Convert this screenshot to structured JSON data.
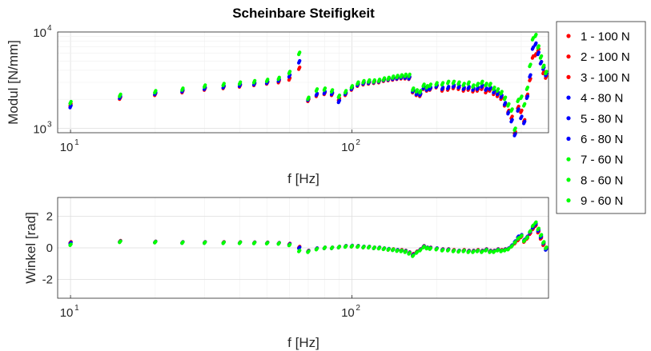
{
  "colors": {
    "force_100N": "#ff0000",
    "force_80N": "#0000ff",
    "force_60N": "#00ff00",
    "grid": "#dedede",
    "axes": "#262626"
  },
  "legend": {
    "placement": "outside-right",
    "entries": [
      "1 - 100 N",
      "2 - 100 N",
      "3 - 100 N",
      "4 - 80 N",
      "5 - 80 N",
      "6 - 80 N",
      "7 - 60 N",
      "8 - 60 N",
      "9 - 60 N"
    ]
  },
  "chart_data": [
    {
      "type": "scatter",
      "title": "Scheinbare Steifigkeit",
      "xlabel": "f [Hz]",
      "ylabel": "Modul [N/mm]",
      "xscale": "log",
      "yscale": "log",
      "xlim": [
        9,
        500
      ],
      "ylim": [
        900,
        10000
      ],
      "grid": true,
      "xticks": [
        {
          "base": "10",
          "exp": "1"
        },
        {
          "base": "10",
          "exp": "2"
        }
      ],
      "yticks": [
        {
          "base": "10",
          "exp": "3"
        },
        {
          "base": "10",
          "exp": "4"
        }
      ],
      "groups": [
        {
          "name": "100 N",
          "color": "#ff0000",
          "series": [
            "1 - 100 N",
            "2 - 100 N",
            "3 - 100 N"
          ]
        },
        {
          "name": "80 N",
          "color": "#0000ff",
          "series": [
            "4 - 80 N",
            "5 - 80 N",
            "6 - 80 N"
          ]
        },
        {
          "name": "60 N",
          "color": "#00ff00",
          "series": [
            "7 - 60 N",
            "8 - 60 N",
            "9 - 60 N"
          ]
        }
      ],
      "x": [
        10,
        15,
        20,
        25,
        30,
        35,
        40,
        45,
        50,
        55,
        60,
        65,
        70,
        75,
        80,
        85,
        90,
        95,
        100,
        105,
        110,
        115,
        120,
        125,
        130,
        135,
        140,
        145,
        150,
        155,
        160,
        165,
        170,
        175,
        180,
        185,
        190,
        200,
        210,
        220,
        230,
        240,
        250,
        260,
        270,
        280,
        290,
        300,
        310,
        320,
        330,
        340,
        350,
        360,
        370,
        380,
        390,
        400,
        410,
        420,
        430,
        440,
        450,
        460,
        470,
        480,
        490
      ],
      "values": {
        "100 N": [
          1750,
          2050,
          2250,
          2400,
          2550,
          2650,
          2750,
          2850,
          2950,
          3050,
          3250,
          4200,
          1950,
          2200,
          2300,
          2250,
          2000,
          2250,
          2550,
          2800,
          2900,
          2950,
          3000,
          3050,
          3150,
          3200,
          3250,
          3300,
          3350,
          3350,
          3300,
          2400,
          2250,
          2200,
          2600,
          2500,
          2550,
          2700,
          2500,
          2550,
          2650,
          2600,
          2500,
          2550,
          2450,
          2500,
          2600,
          2400,
          2500,
          2300,
          2200,
          2050,
          1750,
          1500,
          1300,
          900,
          1650,
          1500,
          1200,
          2200,
          3200,
          5500,
          5800,
          6500,
          4800,
          3800,
          3400
        ],
        "80 N": [
          1680,
          2100,
          2300,
          2450,
          2600,
          2700,
          2800,
          2900,
          3000,
          3150,
          3500,
          4900,
          2000,
          2250,
          2350,
          2300,
          1900,
          2300,
          2600,
          2850,
          2950,
          3000,
          3050,
          3100,
          3200,
          3250,
          3300,
          3350,
          3400,
          3400,
          3350,
          2450,
          2300,
          2250,
          2650,
          2550,
          2600,
          2750,
          2600,
          2650,
          2750,
          2700,
          2600,
          2650,
          2550,
          2600,
          2750,
          2550,
          2600,
          2400,
          2300,
          2150,
          1800,
          1450,
          1200,
          860,
          1550,
          1300,
          1150,
          2100,
          3500,
          6800,
          7500,
          6000,
          4800,
          4200,
          3600
        ],
        "60 N": [
          1850,
          2200,
          2400,
          2550,
          2750,
          2850,
          2950,
          3050,
          3150,
          3300,
          3800,
          6000,
          2050,
          2500,
          2550,
          2450,
          2150,
          2400,
          2700,
          2950,
          3050,
          3100,
          3100,
          3150,
          3250,
          3300,
          3400,
          3450,
          3500,
          3550,
          3550,
          2550,
          2450,
          2400,
          2800,
          2700,
          2800,
          2900,
          2900,
          3000,
          3000,
          2950,
          2850,
          2950,
          2750,
          2850,
          3000,
          2850,
          2850,
          2600,
          2500,
          2350,
          2050,
          1750,
          1550,
          980,
          1950,
          2100,
          1750,
          2600,
          4500,
          8500,
          9200,
          7000,
          5500,
          4400,
          3800
        ]
      }
    },
    {
      "type": "scatter",
      "title": "",
      "xlabel": "f [Hz]",
      "ylabel": "Winkel [rad]",
      "xscale": "log",
      "yscale": "linear",
      "xlim": [
        9,
        500
      ],
      "ylim": [
        -3.2,
        3.2
      ],
      "yticks": [
        "2",
        "0",
        "-2"
      ],
      "xticks": [
        {
          "base": "10",
          "exp": "1"
        },
        {
          "base": "10",
          "exp": "2"
        }
      ],
      "grid": true,
      "x": [
        10,
        15,
        20,
        25,
        30,
        35,
        40,
        45,
        50,
        55,
        60,
        65,
        70,
        75,
        80,
        85,
        90,
        95,
        100,
        105,
        110,
        115,
        120,
        125,
        130,
        135,
        140,
        145,
        150,
        155,
        160,
        165,
        170,
        175,
        180,
        185,
        190,
        200,
        210,
        220,
        230,
        240,
        250,
        260,
        270,
        280,
        290,
        300,
        310,
        320,
        330,
        340,
        350,
        360,
        370,
        380,
        390,
        400,
        410,
        420,
        430,
        440,
        450,
        460,
        470,
        480,
        490
      ],
      "values": {
        "100 N": [
          0.35,
          0.42,
          0.38,
          0.35,
          0.35,
          0.35,
          0.34,
          0.33,
          0.32,
          0.3,
          0.25,
          0.05,
          -0.2,
          -0.05,
          0.0,
          0.0,
          0.05,
          0.1,
          0.1,
          0.1,
          0.05,
          0.05,
          0.0,
          0.0,
          -0.05,
          -0.1,
          -0.1,
          -0.15,
          -0.15,
          -0.2,
          -0.3,
          -0.4,
          -0.25,
          -0.1,
          0.1,
          0.0,
          0.0,
          -0.05,
          -0.1,
          -0.1,
          -0.15,
          -0.2,
          -0.15,
          -0.2,
          -0.2,
          -0.15,
          -0.2,
          -0.1,
          -0.2,
          -0.2,
          -0.1,
          -0.15,
          -0.1,
          -0.05,
          0.1,
          0.3,
          0.5,
          0.7,
          0.4,
          0.6,
          0.9,
          1.2,
          1.4,
          1.0,
          0.6,
          0.2,
          0.0
        ],
        "80 N": [
          0.3,
          0.4,
          0.37,
          0.34,
          0.34,
          0.33,
          0.33,
          0.32,
          0.31,
          0.29,
          0.22,
          0.0,
          -0.22,
          -0.05,
          0.0,
          0.0,
          0.05,
          0.1,
          0.12,
          0.1,
          0.06,
          0.05,
          0.0,
          0.0,
          -0.05,
          -0.08,
          -0.12,
          -0.15,
          -0.18,
          -0.22,
          -0.32,
          -0.45,
          -0.28,
          -0.12,
          0.08,
          0.0,
          -0.02,
          -0.05,
          -0.12,
          -0.12,
          -0.18,
          -0.2,
          -0.18,
          -0.22,
          -0.22,
          -0.18,
          -0.22,
          -0.12,
          -0.22,
          -0.22,
          -0.12,
          -0.18,
          -0.12,
          -0.05,
          0.15,
          0.4,
          0.7,
          0.8,
          0.5,
          0.7,
          1.0,
          1.3,
          1.5,
          1.1,
          0.7,
          0.3,
          -0.1
        ],
        "60 N": [
          0.2,
          0.38,
          0.36,
          0.33,
          0.33,
          0.32,
          0.32,
          0.31,
          0.3,
          0.28,
          0.18,
          -0.2,
          -0.25,
          -0.08,
          0.0,
          0.0,
          0.05,
          0.08,
          0.1,
          0.08,
          0.05,
          0.04,
          0.0,
          -0.02,
          -0.06,
          -0.1,
          -0.12,
          -0.18,
          -0.2,
          -0.25,
          -0.35,
          -0.5,
          -0.3,
          -0.15,
          0.05,
          -0.02,
          -0.05,
          -0.08,
          -0.15,
          -0.15,
          -0.2,
          -0.22,
          -0.2,
          -0.25,
          -0.25,
          -0.2,
          -0.25,
          -0.15,
          -0.25,
          -0.25,
          -0.15,
          -0.2,
          -0.15,
          -0.08,
          0.1,
          0.35,
          0.6,
          0.75,
          0.45,
          0.65,
          1.05,
          1.4,
          1.6,
          1.2,
          0.8,
          0.35,
          0.0
        ]
      }
    }
  ]
}
